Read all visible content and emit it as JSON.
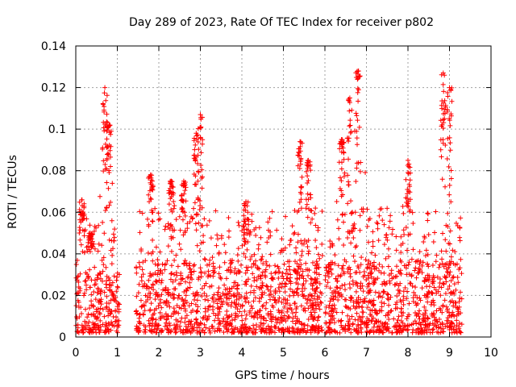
{
  "chart_data": {
    "type": "scatter",
    "title": "Day 289 of 2023, Rate Of TEC Index for receiver p802",
    "xlabel": "GPS time / hours",
    "ylabel": "ROTI / TECUs",
    "xlim": [
      0,
      10
    ],
    "ylim": [
      0,
      0.14
    ],
    "grid": true,
    "marker": "plus",
    "color": "#ff0000",
    "xticks": [
      0,
      1,
      2,
      3,
      4,
      5,
      6,
      7,
      8,
      9,
      10
    ],
    "xtick_labels": [
      "0",
      "1",
      "2",
      "3",
      "4",
      "5",
      "6",
      "7",
      "8",
      "9",
      "10"
    ],
    "yticks": [
      0,
      0.02,
      0.04,
      0.06,
      0.08,
      0.1,
      0.12,
      0.14
    ],
    "ytick_labels": [
      "0",
      "0.02",
      "0.04",
      "0.06",
      "0.08",
      "0.1",
      "0.12",
      "0.14"
    ],
    "data_segments": [
      {
        "x_start": 0.0,
        "x_end": 1.05,
        "baseline_max": 0.03,
        "peaks": [
          {
            "x": 0.15,
            "y": 0.066
          },
          {
            "x": 0.7,
            "y": 0.12
          },
          {
            "x": 0.8,
            "y": 0.102
          },
          {
            "x": 0.35,
            "y": 0.05
          }
        ]
      },
      {
        "x_start": 1.45,
        "x_end": 5.95,
        "baseline_max": 0.035,
        "peaks": [
          {
            "x": 1.8,
            "y": 0.078
          },
          {
            "x": 2.3,
            "y": 0.075
          },
          {
            "x": 2.6,
            "y": 0.075
          },
          {
            "x": 2.9,
            "y": 0.098
          },
          {
            "x": 3.0,
            "y": 0.107
          },
          {
            "x": 4.1,
            "y": 0.065
          },
          {
            "x": 5.4,
            "y": 0.094
          },
          {
            "x": 5.6,
            "y": 0.085
          }
        ]
      },
      {
        "x_start": 6.0,
        "x_end": 9.3,
        "baseline_max": 0.035,
        "peaks": [
          {
            "x": 6.6,
            "y": 0.115
          },
          {
            "x": 6.8,
            "y": 0.128
          },
          {
            "x": 6.4,
            "y": 0.095
          },
          {
            "x": 8.0,
            "y": 0.085
          },
          {
            "x": 8.85,
            "y": 0.127
          },
          {
            "x": 9.0,
            "y": 0.12
          }
        ]
      }
    ]
  }
}
